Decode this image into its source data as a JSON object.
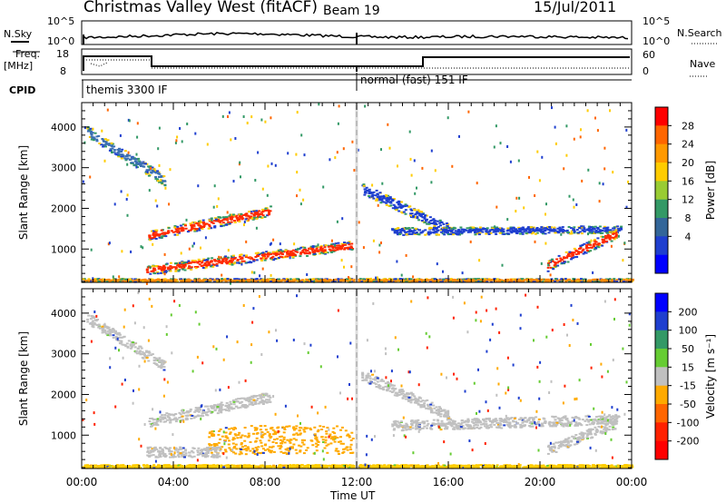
{
  "header": {
    "station": "Christmas Valley West (fitACF)",
    "beam": "Beam 19",
    "date": "15/Jul/2011"
  },
  "top_strip": {
    "nsky_label": "N.Sky",
    "nsky_ticks": [
      "10^5",
      "10^0"
    ],
    "nsearch_label": "N.Search",
    "nsearch_ticks": [
      "10^5",
      "10^0"
    ],
    "freq_label_1": "Freq.",
    "freq_label_2": "[MHz]",
    "freq_ticks": [
      "18",
      "8"
    ],
    "nave_label": "Nave",
    "nave_ticks": [
      "60",
      "0"
    ],
    "cpid_label": "CPID",
    "cpid_segments": [
      "themis 3300 IF",
      "normal (fast) 151 IF"
    ]
  },
  "chart_data": [
    {
      "type": "heatmap",
      "title": "",
      "xlabel": "",
      "ylabel": "Slant Range [km]",
      "x_ticks": [
        "00:00",
        "04:00",
        "08:00",
        "12:00",
        "16:00",
        "20:00",
        "00:00"
      ],
      "y_ticks": [
        1000,
        2000,
        3000,
        4000
      ],
      "ylim": [
        180,
        4600
      ],
      "xlim_hours": [
        0,
        24
      ],
      "colorbar": {
        "label": "Power [dB]",
        "ticks": [
          "28",
          "24",
          "20",
          "16",
          "12",
          "8",
          "4"
        ],
        "colors": [
          "#ff0000",
          "#ff6600",
          "#ff9900",
          "#ffcc00",
          "#99cc33",
          "#339966",
          "#336699",
          "#1f3fcf",
          "#0000ff"
        ]
      },
      "echo_bands": [
        {
          "t_start": 0.2,
          "t_end": 3.6,
          "r_start": 3900,
          "r_end": 2700,
          "width": 260,
          "color": "#3b6fb3"
        },
        {
          "t_start": 2.9,
          "t_end": 8.2,
          "r_start": 1350,
          "r_end": 1950,
          "width": 240,
          "color": "#ff2a00"
        },
        {
          "t_start": 2.8,
          "t_end": 11.8,
          "r_start": 500,
          "r_end": 1100,
          "width": 230,
          "color": "#ff2a00"
        },
        {
          "t_start": 12.2,
          "t_end": 16.0,
          "r_start": 2500,
          "r_end": 1500,
          "width": 260,
          "color": "#1f3fcf"
        },
        {
          "t_start": 13.5,
          "t_end": 23.5,
          "r_start": 1450,
          "r_end": 1500,
          "width": 180,
          "color": "#1f3fcf"
        },
        {
          "t_start": 20.3,
          "t_end": 23.3,
          "r_start": 600,
          "r_end": 1400,
          "width": 260,
          "color": "#ff2a00"
        },
        {
          "t_start": 0.0,
          "t_end": 24.0,
          "r_start": 250,
          "r_end": 250,
          "width": 80,
          "color": "#ff8800"
        }
      ]
    },
    {
      "type": "heatmap",
      "title": "",
      "xlabel": "Time UT",
      "ylabel": "Slant Range [km]",
      "x_ticks": [
        "00:00",
        "04:00",
        "08:00",
        "12:00",
        "16:00",
        "20:00",
        "00:00"
      ],
      "y_ticks": [
        1000,
        2000,
        3000,
        4000
      ],
      "ylim": [
        180,
        4600
      ],
      "xlim_hours": [
        0,
        24
      ],
      "colorbar": {
        "label": "Velocity [m s⁻¹]",
        "ticks": [
          "200",
          "100",
          "50",
          "15",
          "-15",
          "-50",
          "-100",
          "-200"
        ],
        "colors": [
          "#0000ff",
          "#1f3fcf",
          "#339966",
          "#66cc33",
          "#c0c0c0",
          "#ffaa00",
          "#ff6600",
          "#ff2200",
          "#ff0000"
        ]
      },
      "echo_bands": [
        {
          "t_start": 0.2,
          "t_end": 3.6,
          "r_start": 3900,
          "r_end": 2700,
          "width": 260,
          "color": "#c0c0c0"
        },
        {
          "t_start": 2.9,
          "t_end": 8.2,
          "r_start": 1350,
          "r_end": 1950,
          "width": 260,
          "color": "#c0c0c0"
        },
        {
          "t_start": 5.5,
          "t_end": 11.8,
          "r_start": 900,
          "r_end": 900,
          "width": 700,
          "color": "#ffaa00"
        },
        {
          "t_start": 2.8,
          "t_end": 6.0,
          "r_start": 600,
          "r_end": 600,
          "width": 250,
          "color": "#c0c0c0"
        },
        {
          "t_start": 12.2,
          "t_end": 16.0,
          "r_start": 2500,
          "r_end": 1500,
          "width": 260,
          "color": "#c0c0c0"
        },
        {
          "t_start": 13.5,
          "t_end": 23.5,
          "r_start": 1250,
          "r_end": 1400,
          "width": 250,
          "color": "#c0c0c0"
        },
        {
          "t_start": 20.3,
          "t_end": 23.3,
          "r_start": 650,
          "r_end": 1300,
          "width": 250,
          "color": "#c0c0c0"
        },
        {
          "t_start": 0.0,
          "t_end": 24.0,
          "r_start": 250,
          "r_end": 250,
          "width": 80,
          "color": "#ffcc00"
        }
      ]
    }
  ]
}
